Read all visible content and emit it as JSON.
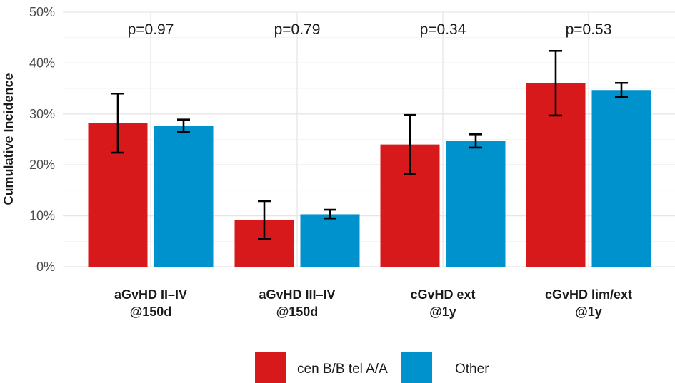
{
  "chart_data": {
    "type": "bar",
    "title": "",
    "xlabel": "",
    "ylabel": "Cumulative Incidence",
    "ylim": [
      0,
      50
    ],
    "y_ticks": [
      "0%",
      "10%",
      "20%",
      "30%",
      "40%",
      "50%"
    ],
    "y_tick_values": [
      0,
      10,
      20,
      30,
      40,
      50
    ],
    "grid": true,
    "categories": [
      [
        "aGvHD II–IV",
        "@150d"
      ],
      [
        "aGvHD III–IV",
        "@150d"
      ],
      [
        "cGvHD ext",
        "@1y"
      ],
      [
        "cGvHD lim/ext",
        "@1y"
      ]
    ],
    "p_values": [
      "p=0.97",
      "p=0.79",
      "p=0.34",
      "p=0.53"
    ],
    "series": [
      {
        "name": "cen B/B tel A/A",
        "color": "#D7191C",
        "values": [
          28.2,
          9.2,
          24.0,
          36.1
        ],
        "error_low": [
          22.4,
          5.5,
          18.2,
          29.7
        ],
        "error_high": [
          34.0,
          12.9,
          29.8,
          42.4
        ]
      },
      {
        "name": "Other",
        "color": "#0092CC",
        "values": [
          27.7,
          10.3,
          24.7,
          34.7
        ],
        "error_low": [
          26.5,
          9.5,
          23.4,
          33.3
        ],
        "error_high": [
          28.9,
          11.2,
          26.0,
          36.1
        ]
      }
    ],
    "legend_position": "bottom"
  }
}
